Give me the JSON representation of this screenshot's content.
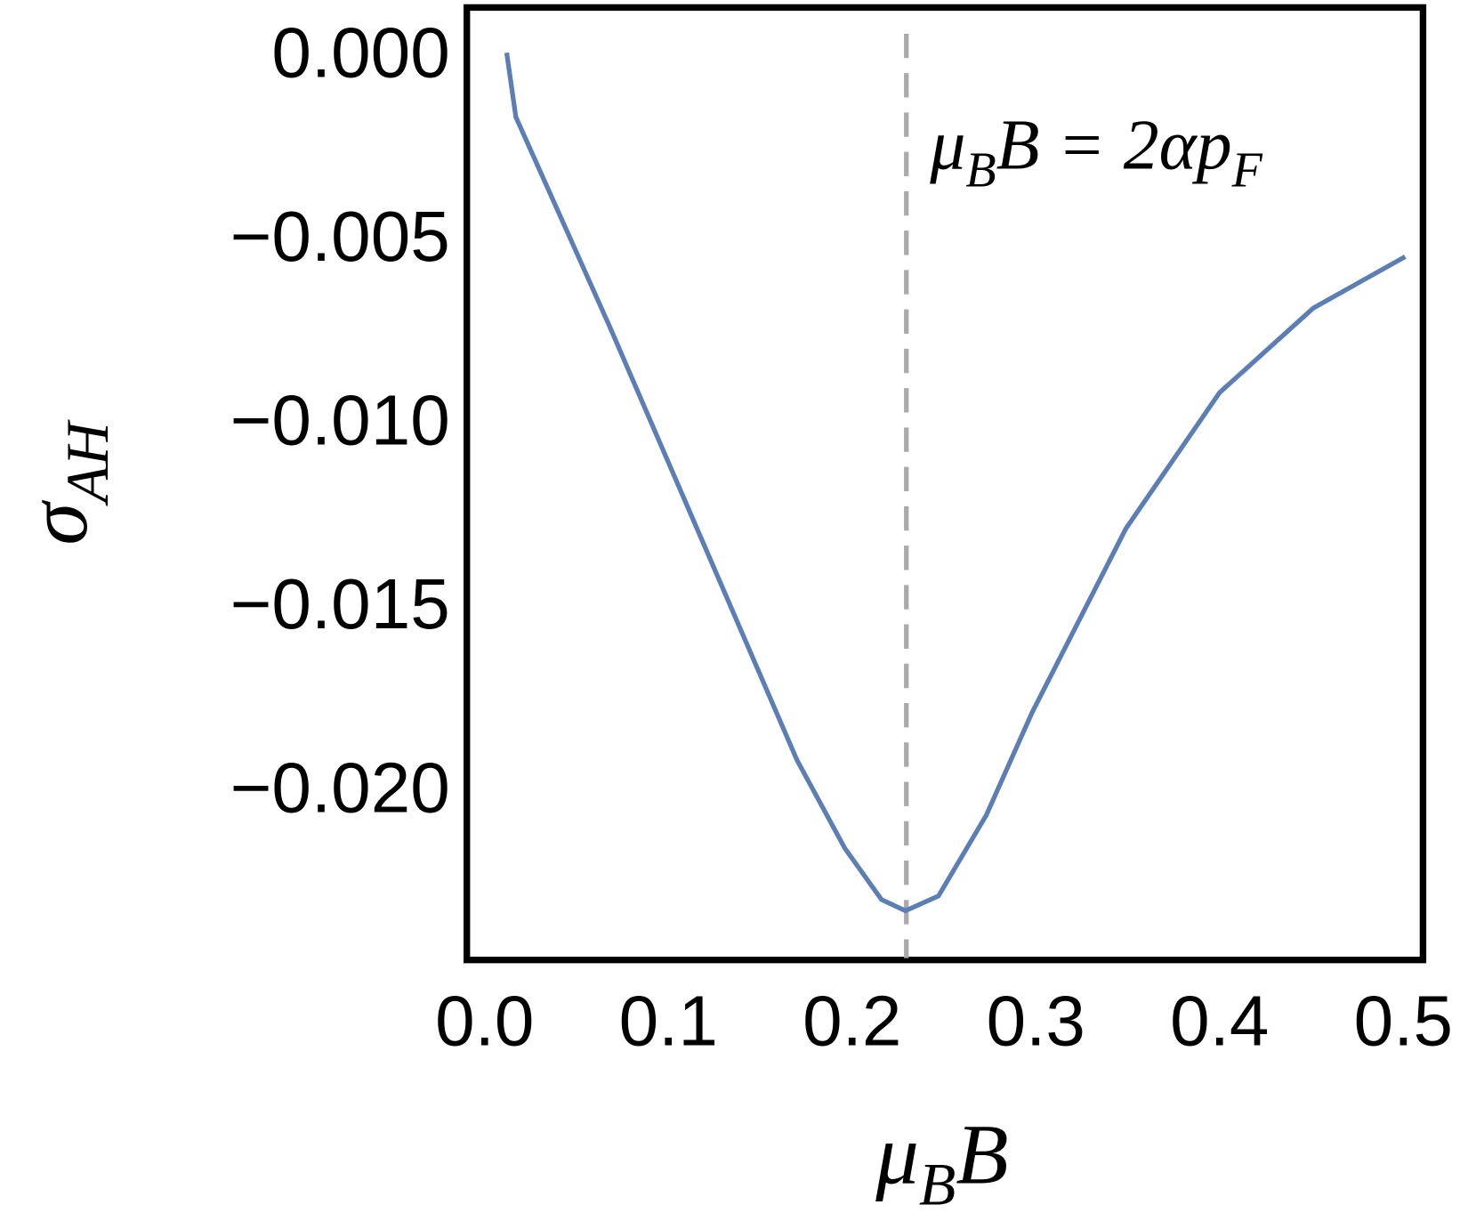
{
  "chart_data": {
    "type": "line",
    "xlabel": [
      {
        "text": "μ"
      },
      {
        "text": "B",
        "sub": true
      },
      {
        "text": "B"
      }
    ],
    "ylabel": [
      {
        "text": "σ"
      },
      {
        "text": "AH",
        "sub": true
      }
    ],
    "annotation": {
      "runs": [
        {
          "text": "μ"
        },
        {
          "text": "B",
          "sub": true
        },
        {
          "text": "B = 2αp"
        },
        {
          "text": "F",
          "sub": true
        }
      ],
      "x": 0.2295
    },
    "x": [
      0.012,
      0.017,
      0.068,
      0.119,
      0.17,
      0.196,
      0.216,
      0.229,
      0.247,
      0.273,
      0.298,
      0.349,
      0.4,
      0.451,
      0.501
    ],
    "values": [
      0.00015,
      -0.0016,
      -0.0073,
      -0.0132,
      -0.0191,
      -0.0215,
      -0.0229,
      -0.0232,
      -0.0228,
      -0.0206,
      -0.0178,
      -0.0128,
      -0.0091,
      -0.0068,
      -0.0054
    ],
    "color": "#5b7fb5",
    "vline_color": "#aaaaaa",
    "xlim": [
      -0.0097,
      0.5107
    ],
    "ylim": [
      -0.02454,
      0.00138
    ],
    "xticks": [
      {
        "value": 0,
        "label": "0.0"
      },
      0.1,
      0.2,
      0.3,
      0.4,
      0.5
    ],
    "yticks": [
      {
        "value": 0,
        "label": "0.000"
      },
      {
        "value": -0.005,
        "label": "−0.005"
      },
      {
        "value": -0.01,
        "label": "−0.010"
      },
      {
        "value": -0.015,
        "label": "−0.015"
      },
      {
        "value": -0.02,
        "label": "−0.020"
      }
    ]
  }
}
